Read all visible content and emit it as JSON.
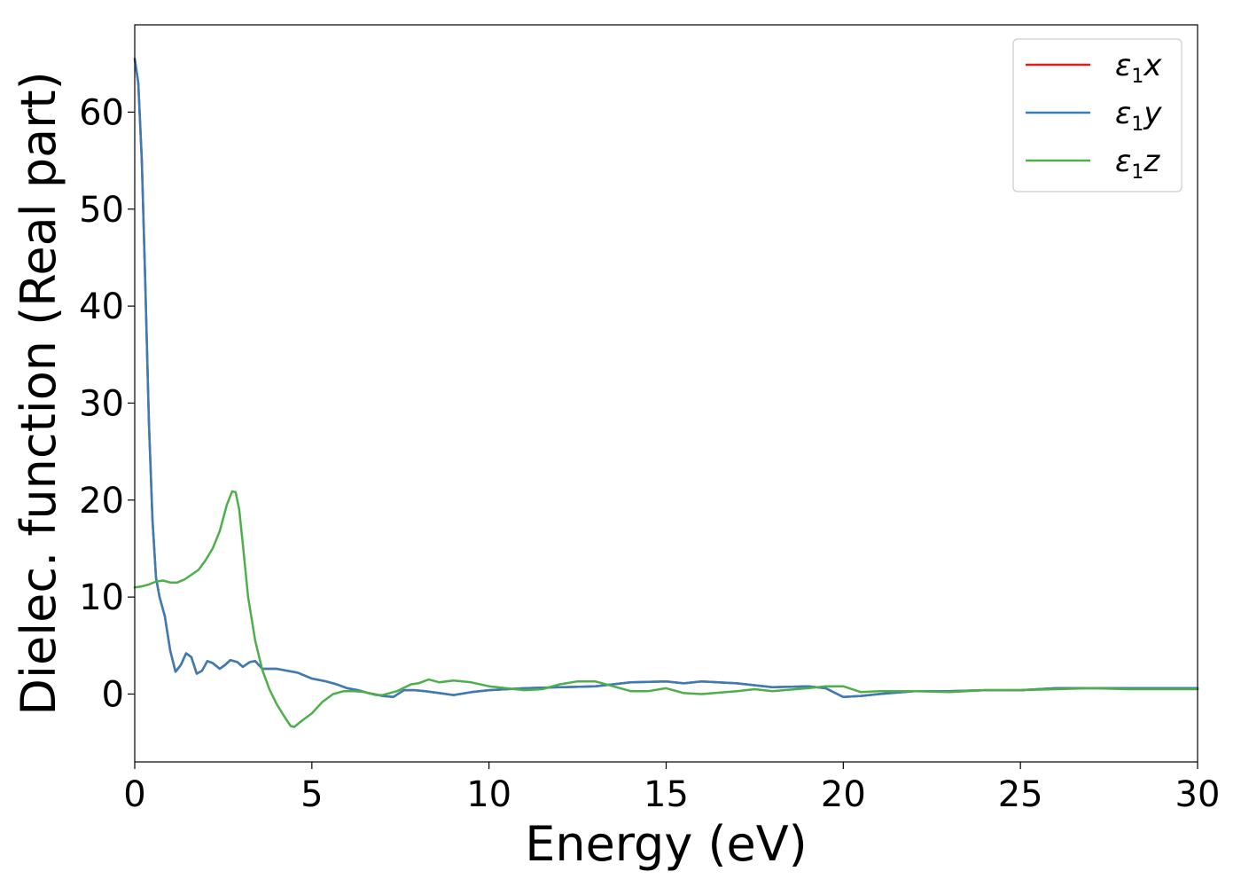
{
  "chart_data": {
    "type": "line",
    "xlabel": "Energy (eV)",
    "ylabel": "Dielec. function (Real part)",
    "xlim": [
      0,
      30
    ],
    "ylim": [
      -7,
      69
    ],
    "xticks": [
      0,
      5,
      10,
      15,
      20,
      25,
      30
    ],
    "yticks": [
      0,
      10,
      20,
      30,
      40,
      50,
      60
    ],
    "grid": false,
    "legend_position": "top-right",
    "series": [
      {
        "name": "ε1x",
        "name_base": "ε",
        "name_sub": "1",
        "name_var": "x",
        "color": "#e41a1c",
        "x": [
          0,
          0.1,
          0.2,
          0.3,
          0.4,
          0.5,
          0.6,
          0.7,
          0.85,
          1.0,
          1.15,
          1.3,
          1.45,
          1.6,
          1.75,
          1.9,
          2.05,
          2.2,
          2.4,
          2.55,
          2.7,
          2.9,
          3.05,
          3.25,
          3.4,
          3.6,
          3.8,
          4.0,
          4.3,
          4.6,
          5.0,
          5.4,
          5.7,
          6.0,
          6.3,
          6.6,
          7.0,
          7.3,
          7.6,
          7.9,
          8.2,
          8.6,
          9.0,
          9.5,
          10.0,
          11.0,
          12.0,
          13.0,
          14.0,
          15.0,
          15.5,
          16.0,
          17.0,
          18.0,
          19.0,
          19.5,
          20.0,
          20.5,
          21.0,
          22.0,
          23.0,
          24.0,
          25.0,
          26.0,
          27.0,
          28.0,
          29.0,
          30.0
        ],
        "values": [
          65.5,
          63,
          55,
          42,
          28,
          18,
          12,
          10,
          8,
          4.5,
          2.3,
          3.0,
          4.2,
          3.8,
          2.1,
          2.4,
          3.4,
          3.2,
          2.6,
          3.0,
          3.5,
          3.3,
          2.8,
          3.3,
          3.4,
          2.6,
          2.6,
          2.6,
          2.4,
          2.2,
          1.6,
          1.3,
          1.0,
          0.6,
          0.4,
          0.1,
          -0.2,
          -0.3,
          0.4,
          0.4,
          0.3,
          0.1,
          -0.1,
          0.2,
          0.4,
          0.6,
          0.7,
          0.8,
          1.2,
          1.3,
          1.1,
          1.3,
          1.1,
          0.7,
          0.8,
          0.6,
          -0.3,
          -0.2,
          0,
          0.3,
          0.3,
          0.4,
          0.4,
          0.6,
          0.6,
          0.6,
          0.6,
          0.6
        ]
      },
      {
        "name": "ε1y",
        "name_base": "ε",
        "name_sub": "1",
        "name_var": "y",
        "color": "#377eb8",
        "x": [
          0,
          0.1,
          0.2,
          0.3,
          0.4,
          0.5,
          0.6,
          0.7,
          0.85,
          1.0,
          1.15,
          1.3,
          1.45,
          1.6,
          1.75,
          1.9,
          2.05,
          2.2,
          2.4,
          2.55,
          2.7,
          2.9,
          3.05,
          3.25,
          3.4,
          3.6,
          3.8,
          4.0,
          4.3,
          4.6,
          5.0,
          5.4,
          5.7,
          6.0,
          6.3,
          6.6,
          7.0,
          7.3,
          7.6,
          7.9,
          8.2,
          8.6,
          9.0,
          9.5,
          10.0,
          11.0,
          12.0,
          13.0,
          14.0,
          15.0,
          15.5,
          16.0,
          17.0,
          18.0,
          19.0,
          19.5,
          20.0,
          20.5,
          21.0,
          22.0,
          23.0,
          24.0,
          25.0,
          26.0,
          27.0,
          28.0,
          29.0,
          30.0
        ],
        "values": [
          65.5,
          63,
          55,
          42,
          28,
          18,
          12,
          10,
          8,
          4.5,
          2.3,
          3.0,
          4.2,
          3.8,
          2.1,
          2.4,
          3.4,
          3.2,
          2.6,
          3.0,
          3.5,
          3.3,
          2.8,
          3.3,
          3.4,
          2.6,
          2.6,
          2.6,
          2.4,
          2.2,
          1.6,
          1.3,
          1.0,
          0.6,
          0.4,
          0.1,
          -0.2,
          -0.3,
          0.4,
          0.4,
          0.3,
          0.1,
          -0.1,
          0.2,
          0.4,
          0.6,
          0.7,
          0.8,
          1.2,
          1.3,
          1.1,
          1.3,
          1.1,
          0.7,
          0.8,
          0.6,
          -0.3,
          -0.2,
          0,
          0.3,
          0.3,
          0.4,
          0.4,
          0.6,
          0.6,
          0.6,
          0.6,
          0.6
        ]
      },
      {
        "name": "ε1z",
        "name_base": "ε",
        "name_sub": "1",
        "name_var": "z",
        "color": "#4daf4a",
        "x": [
          0,
          0.2,
          0.4,
          0.6,
          0.8,
          1.0,
          1.2,
          1.4,
          1.6,
          1.8,
          2.0,
          2.2,
          2.4,
          2.6,
          2.75,
          2.85,
          2.95,
          3.05,
          3.2,
          3.4,
          3.6,
          3.8,
          4.0,
          4.2,
          4.4,
          4.5,
          4.7,
          5.0,
          5.3,
          5.6,
          5.9,
          6.2,
          6.5,
          6.8,
          7.0,
          7.4,
          7.8,
          8.0,
          8.3,
          8.6,
          9.0,
          9.5,
          10.0,
          11.0,
          11.5,
          12.0,
          12.5,
          13.0,
          13.5,
          14.0,
          14.5,
          15.0,
          15.5,
          16.0,
          17.0,
          17.5,
          18.0,
          19.0,
          19.5,
          20.0,
          20.5,
          21.0,
          22.0,
          23.0,
          24.0,
          25.0,
          26.0,
          27.0,
          28.0,
          29.0,
          30.0
        ],
        "values": [
          11.0,
          11.1,
          11.3,
          11.6,
          11.7,
          11.5,
          11.5,
          11.8,
          12.3,
          12.8,
          13.8,
          15.0,
          16.8,
          19.5,
          20.9,
          20.8,
          19.0,
          15.5,
          10.0,
          5.5,
          2.5,
          0.5,
          -1.0,
          -2.2,
          -3.3,
          -3.4,
          -2.8,
          -2.0,
          -0.8,
          0.0,
          0.3,
          0.3,
          0.2,
          -0.1,
          -0.1,
          0.3,
          1.0,
          1.1,
          1.5,
          1.2,
          1.4,
          1.2,
          0.8,
          0.4,
          0.5,
          1.0,
          1.3,
          1.3,
          0.8,
          0.3,
          0.3,
          0.6,
          0.1,
          0,
          0.3,
          0.5,
          0.3,
          0.6,
          0.8,
          0.8,
          0.2,
          0.3,
          0.3,
          0.2,
          0.4,
          0.4,
          0.5,
          0.6,
          0.5,
          0.5,
          0.5
        ]
      }
    ]
  }
}
